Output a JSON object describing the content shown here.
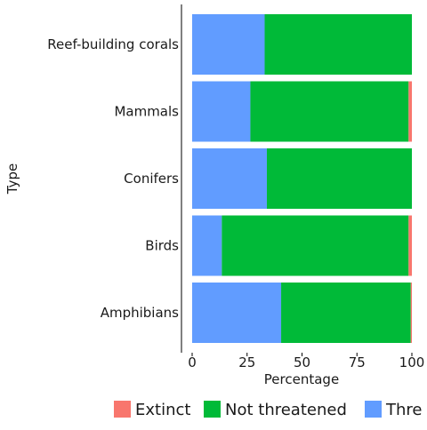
{
  "chart_data": {
    "type": "bar",
    "orientation": "horizontal",
    "stacked": true,
    "xlabel": "Percentage",
    "ylabel": "Type",
    "xlim": [
      0,
      100
    ],
    "xticks": [
      0,
      25,
      50,
      75,
      100
    ],
    "categories": [
      "Reef-building corals",
      "Mammals",
      "Conifers",
      "Birds",
      "Amphibians"
    ],
    "series": [
      {
        "name": "Threatened",
        "color": "#619CFF",
        "values": [
          33,
          26.5,
          34,
          13.5,
          40.5
        ]
      },
      {
        "name": "Not threatened",
        "color": "#00BA38",
        "values": [
          67,
          72,
          66,
          85,
          59
        ]
      },
      {
        "name": "Extinct",
        "color": "#F8766D",
        "values": [
          0,
          1.5,
          0,
          1.5,
          0.5
        ]
      }
    ],
    "legend": {
      "position": "bottom",
      "entries": [
        {
          "label": "Extinct",
          "color": "#F8766D"
        },
        {
          "label": "Not threatened",
          "color": "#00BA38"
        },
        {
          "label": "Thre",
          "color": "#619CFF"
        }
      ]
    },
    "grid": false
  }
}
